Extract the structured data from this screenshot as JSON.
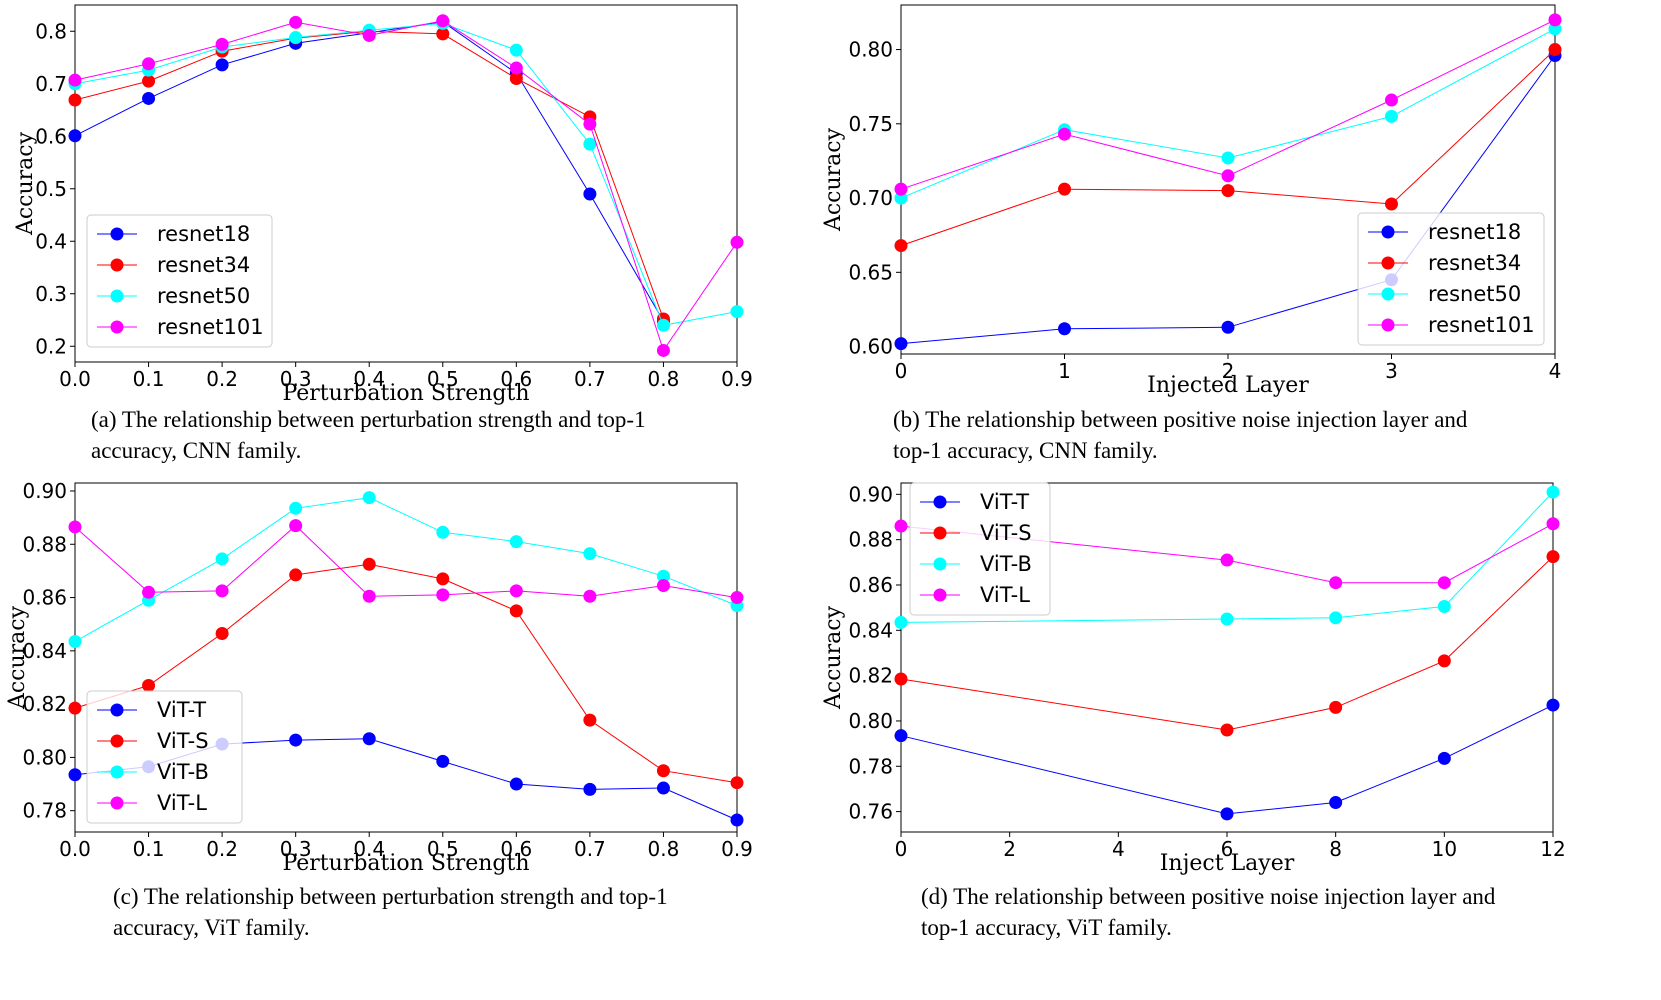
{
  "colors": {
    "series1": "#0000ff",
    "series2": "#ff0000",
    "series3": "#00ffff",
    "series4": "#ff00ff"
  },
  "captions": {
    "a": [
      "(a) The relationship between perturbation strength and top-1",
      "accuracy, CNN family."
    ],
    "b": [
      "(b) The relationship between positive noise injection layer and",
      "top-1 accuracy, CNN family."
    ],
    "c": [
      "(c) The relationship between perturbation strength and top-1",
      "accuracy, ViT family."
    ],
    "d": [
      "(d) The relationship between positive noise injection layer and",
      "top-1 accuracy, ViT family."
    ]
  },
  "chart_data": [
    {
      "id": "a",
      "type": "line",
      "xlabel": "Perturbation Strength",
      "ylabel": "Accuracy",
      "xlim": [
        0.0,
        0.9
      ],
      "ylim": [
        0.17,
        0.85
      ],
      "xticks": [
        0.0,
        0.1,
        0.2,
        0.3,
        0.4,
        0.5,
        0.6,
        0.7,
        0.8,
        0.9
      ],
      "xtick_labels": [
        "0.0",
        "0.1",
        "0.2",
        "0.3",
        "0.4",
        "0.5",
        "0.6",
        "0.7",
        "0.8",
        "0.9"
      ],
      "yticks": [
        0.2,
        0.3,
        0.4,
        0.5,
        0.6,
        0.7,
        0.8
      ],
      "ytick_labels": [
        "0.2",
        "0.3",
        "0.4",
        "0.5",
        "0.6",
        "0.7",
        "0.8"
      ],
      "legend_position": "lower-left",
      "grid": false,
      "series": [
        {
          "name": "resnet18",
          "x": [
            0.0,
            0.1,
            0.2,
            0.3,
            0.4,
            0.5,
            0.6,
            0.7,
            0.8
          ],
          "y": [
            0.601,
            0.672,
            0.736,
            0.777,
            0.797,
            0.818,
            0.72,
            0.49,
            0.248
          ]
        },
        {
          "name": "resnet34",
          "x": [
            0.0,
            0.1,
            0.2,
            0.3,
            0.4,
            0.5,
            0.6,
            0.7,
            0.8
          ],
          "y": [
            0.669,
            0.705,
            0.762,
            0.787,
            0.8,
            0.795,
            0.71,
            0.637,
            0.252
          ]
        },
        {
          "name": "resnet50",
          "x": [
            0.0,
            0.1,
            0.2,
            0.3,
            0.4,
            0.5,
            0.6,
            0.7,
            0.8,
            0.9
          ],
          "y": [
            0.7,
            0.726,
            0.77,
            0.788,
            0.802,
            0.815,
            0.764,
            0.585,
            0.24,
            0.266
          ]
        },
        {
          "name": "resnet101",
          "x": [
            0.0,
            0.1,
            0.2,
            0.3,
            0.4,
            0.5,
            0.6,
            0.7,
            0.8,
            0.9
          ],
          "y": [
            0.707,
            0.738,
            0.775,
            0.817,
            0.792,
            0.82,
            0.73,
            0.623,
            0.192,
            0.398
          ]
        }
      ]
    },
    {
      "id": "b",
      "type": "line",
      "xlabel": "Injected Layer",
      "ylabel": "Accuracy",
      "xlim": [
        0,
        4
      ],
      "ylim": [
        0.595,
        0.83
      ],
      "xticks": [
        0,
        1,
        2,
        3,
        4
      ],
      "xtick_labels": [
        "0",
        "1",
        "2",
        "3",
        "4"
      ],
      "yticks": [
        0.6,
        0.65,
        0.7,
        0.75,
        0.8
      ],
      "ytick_labels": [
        "0.60",
        "0.65",
        "0.70",
        "0.75",
        "0.80"
      ],
      "legend_position": "lower-right",
      "grid": false,
      "series": [
        {
          "name": "resnet18",
          "x": [
            0,
            1,
            2,
            3,
            4
          ],
          "y": [
            0.602,
            0.612,
            0.613,
            0.645,
            0.796
          ]
        },
        {
          "name": "resnet34",
          "x": [
            0,
            1,
            2,
            3,
            4
          ],
          "y": [
            0.668,
            0.706,
            0.705,
            0.696,
            0.8
          ]
        },
        {
          "name": "resnet50",
          "x": [
            0,
            1,
            2,
            3,
            4
          ],
          "y": [
            0.7,
            0.746,
            0.727,
            0.755,
            0.814
          ]
        },
        {
          "name": "resnet101",
          "x": [
            0,
            1,
            2,
            3,
            4
          ],
          "y": [
            0.706,
            0.743,
            0.715,
            0.766,
            0.82
          ]
        }
      ]
    },
    {
      "id": "c",
      "type": "line",
      "xlabel": "Perturbation Strength",
      "ylabel": "Accuracy",
      "xlim": [
        0.0,
        0.9
      ],
      "ylim": [
        0.772,
        0.903
      ],
      "xticks": [
        0.0,
        0.1,
        0.2,
        0.3,
        0.4,
        0.5,
        0.6,
        0.7,
        0.8,
        0.9
      ],
      "xtick_labels": [
        "0.0",
        "0.1",
        "0.2",
        "0.3",
        "0.4",
        "0.5",
        "0.6",
        "0.7",
        "0.8",
        "0.9"
      ],
      "yticks": [
        0.78,
        0.8,
        0.82,
        0.84,
        0.86,
        0.88,
        0.9
      ],
      "ytick_labels": [
        "0.78",
        "0.80",
        "0.82",
        "0.84",
        "0.86",
        "0.88",
        "0.90"
      ],
      "legend_position": "lower-left",
      "grid": false,
      "series": [
        {
          "name": "ViT-T",
          "x": [
            0.0,
            0.1,
            0.2,
            0.3,
            0.4,
            0.5,
            0.6,
            0.7,
            0.8,
            0.9
          ],
          "y": [
            0.7935,
            0.7965,
            0.805,
            0.8065,
            0.807,
            0.7985,
            0.79,
            0.788,
            0.7885,
            0.7765
          ]
        },
        {
          "name": "ViT-S",
          "x": [
            0.0,
            0.1,
            0.2,
            0.3,
            0.4,
            0.5,
            0.6,
            0.7,
            0.8,
            0.9
          ],
          "y": [
            0.8185,
            0.827,
            0.8465,
            0.8685,
            0.8725,
            0.867,
            0.855,
            0.814,
            0.795,
            0.7905
          ]
        },
        {
          "name": "ViT-B",
          "x": [
            0.0,
            0.1,
            0.2,
            0.3,
            0.4,
            0.5,
            0.6,
            0.7,
            0.8,
            0.9
          ],
          "y": [
            0.8435,
            0.859,
            0.8745,
            0.8935,
            0.8975,
            0.8845,
            0.881,
            0.8765,
            0.868,
            0.857
          ]
        },
        {
          "name": "ViT-L",
          "x": [
            0.0,
            0.1,
            0.2,
            0.3,
            0.4,
            0.5,
            0.6,
            0.7,
            0.8,
            0.9
          ],
          "y": [
            0.8865,
            0.862,
            0.8625,
            0.887,
            0.8605,
            0.861,
            0.8625,
            0.8605,
            0.8645,
            0.86
          ]
        }
      ]
    },
    {
      "id": "d",
      "type": "line",
      "xlabel": "Inject Layer",
      "ylabel": "Accuracy",
      "xlim": [
        0,
        12
      ],
      "ylim": [
        0.751,
        0.905
      ],
      "xticks": [
        0,
        2,
        4,
        6,
        8,
        10,
        12
      ],
      "xtick_labels": [
        "0",
        "2",
        "4",
        "6",
        "8",
        "10",
        "12"
      ],
      "yticks": [
        0.76,
        0.78,
        0.8,
        0.82,
        0.84,
        0.86,
        0.88,
        0.9
      ],
      "ytick_labels": [
        "0.76",
        "0.78",
        "0.80",
        "0.82",
        "0.84",
        "0.86",
        "0.88",
        "0.90"
      ],
      "legend_position": "upper-left",
      "grid": false,
      "series": [
        {
          "name": "ViT-T",
          "x": [
            0,
            6,
            8,
            10,
            12
          ],
          "y": [
            0.7935,
            0.759,
            0.764,
            0.7835,
            0.807
          ]
        },
        {
          "name": "ViT-S",
          "x": [
            0,
            6,
            8,
            10,
            12
          ],
          "y": [
            0.8185,
            0.796,
            0.806,
            0.8265,
            0.8725
          ]
        },
        {
          "name": "ViT-B",
          "x": [
            0,
            6,
            8,
            10,
            12
          ],
          "y": [
            0.8435,
            0.845,
            0.8455,
            0.8505,
            0.901
          ]
        },
        {
          "name": "ViT-L",
          "x": [
            0,
            6,
            8,
            10,
            12
          ],
          "y": [
            0.886,
            0.871,
            0.861,
            0.861,
            0.887
          ]
        }
      ]
    }
  ]
}
